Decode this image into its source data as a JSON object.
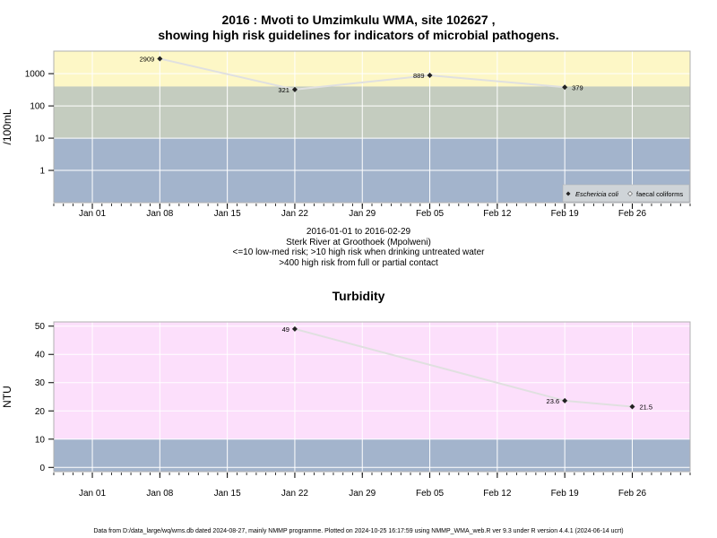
{
  "header": {
    "title_line1": "2016 : Mvoti to Umzimkulu WMA, site 102627 ,",
    "title_line2": "showing high risk guidelines for indicators of microbial pathogens."
  },
  "caption": {
    "line1": "2016-01-01 to 2016-02-29",
    "line2": "Sterk River at Groothoek (Mpolweni)",
    "line3": "<=10 low-med risk; >10 high risk when drinking untreated water",
    "line4": ">400 high risk from full or partial contact"
  },
  "footer": {
    "text": "Data from D:/data_large/wq/wms.db dated 2024-08-27, mainly NMMP programme. Plotted on 2024-10-25 16:17:59 using NMMP_WMA_web.R ver 9.3 under R version 4.4.1 (2024-06-14 ucrt)"
  },
  "colors": {
    "band_yellow": "#fdf7c6",
    "band_gray": "#c4ccbf",
    "band_blue": "#a3b4cc",
    "band_pink": "#fcdffb",
    "grid": "#ffffff",
    "line": "#e0e0e0",
    "point": "#222222"
  },
  "chart_data": [
    {
      "type": "line",
      "title": "",
      "xlabel": "",
      "ylabel": "/100mL",
      "yscale": "log",
      "xlim": [
        "2015-12-28",
        "2016-03-03"
      ],
      "ylim": [
        0.1,
        5000
      ],
      "x_ticks": [
        "Jan 01",
        "Jan 08",
        "Jan 15",
        "Jan 22",
        "Jan 29",
        "Feb 05",
        "Feb 12",
        "Feb 19",
        "Feb 26"
      ],
      "y_ticks": [
        "1",
        "10",
        "100",
        "1000"
      ],
      "grid": true,
      "bands": [
        {
          "from": 400,
          "to": 5000,
          "color": "#fdf7c6"
        },
        {
          "from": 10,
          "to": 400,
          "color": "#c4ccbf"
        },
        {
          "from": 0.1,
          "to": 10,
          "color": "#a3b4cc"
        }
      ],
      "legend": {
        "position": "bottom-right",
        "entries": [
          "Eschericia coli",
          "faecal coliforms"
        ]
      },
      "series": [
        {
          "name": "Eschericia coli",
          "points": [
            {
              "x": "2016-01-08",
              "y": 2909,
              "label": "2909"
            },
            {
              "x": "2016-01-22",
              "y": 321,
              "label": "321"
            },
            {
              "x": "2016-02-05",
              "y": 889,
              "label": "889"
            },
            {
              "x": "2016-02-19",
              "y": 379,
              "label": "379"
            }
          ]
        }
      ]
    },
    {
      "type": "line",
      "title": "Turbidity",
      "xlabel": "",
      "ylabel": "NTU",
      "yscale": "linear",
      "xlim": [
        "2015-12-28",
        "2016-03-03"
      ],
      "ylim": [
        -1.5,
        51.5
      ],
      "x_ticks": [
        "Jan 01",
        "Jan 08",
        "Jan 15",
        "Jan 22",
        "Jan 29",
        "Feb 05",
        "Feb 12",
        "Feb 19",
        "Feb 26"
      ],
      "y_ticks": [
        "0",
        "10",
        "20",
        "30",
        "40",
        "50"
      ],
      "grid": true,
      "bands": [
        {
          "from": 10,
          "to": 51.5,
          "color": "#fcdffb"
        },
        {
          "from": -1.5,
          "to": 10,
          "color": "#a3b4cc"
        }
      ],
      "series": [
        {
          "name": "",
          "points": [
            {
              "x": "2016-01-22",
              "y": 49,
              "label": "49"
            },
            {
              "x": "2016-02-19",
              "y": 23.6,
              "label": "23.6"
            },
            {
              "x": "2016-02-26",
              "y": 21.5,
              "label": "21.5"
            }
          ]
        }
      ]
    }
  ]
}
